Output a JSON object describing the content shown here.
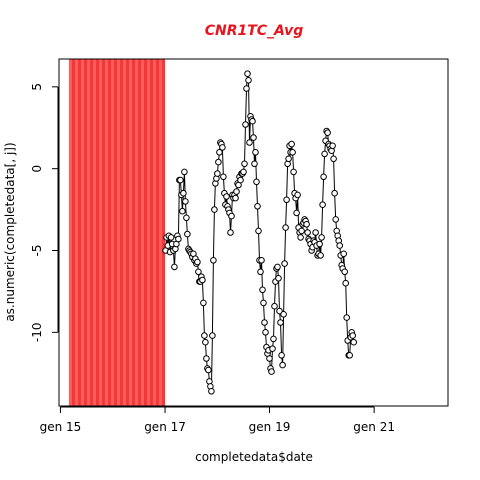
{
  "chart_data": {
    "type": "line",
    "title": "CNR1TC_Avg",
    "xlabel": "completedata$date",
    "ylabel": "as.numeric(completedata[, j])",
    "x_ticks": [
      "gen 15",
      "gen 17",
      "gen 19",
      "gen 21"
    ],
    "y_ticks": [
      "5",
      "0",
      "-5",
      "-10"
    ],
    "x_range": [
      "2014-12-22",
      "2022-06-01"
    ],
    "ylim": [
      -14.5,
      6.7
    ],
    "highlight_region": {
      "x_start": "2015-03-01",
      "x_end": "2017-01-01"
    },
    "series": [
      {
        "values": [
          {
            "x": "2017-01-05",
            "y": -5.0
          },
          {
            "x": "2017-01-12",
            "y": -4.2
          },
          {
            "x": "2017-01-20",
            "y": -4.7
          },
          {
            "x": "2017-01-28",
            "y": -4.1
          },
          {
            "x": "2017-02-05",
            "y": -5.1
          },
          {
            "x": "2017-02-12",
            "y": -4.2
          },
          {
            "x": "2017-02-20",
            "y": -4.6
          },
          {
            "x": "2017-02-28",
            "y": -5.0
          },
          {
            "x": "2017-03-07",
            "y": -6.0
          },
          {
            "x": "2017-03-14",
            "y": -4.9
          },
          {
            "x": "2017-03-21",
            "y": -4.6
          },
          {
            "x": "2017-03-28",
            "y": -4.1
          },
          {
            "x": "2017-04-04",
            "y": -4.3
          },
          {
            "x": "2017-04-11",
            "y": -0.7
          },
          {
            "x": "2017-04-18",
            "y": -0.7
          },
          {
            "x": "2017-04-25",
            "y": -1.6
          },
          {
            "x": "2017-05-02",
            "y": -2.6
          },
          {
            "x": "2017-05-09",
            "y": -1.5
          },
          {
            "x": "2017-05-16",
            "y": -0.2
          },
          {
            "x": "2017-05-23",
            "y": -2.0
          },
          {
            "x": "2017-05-30",
            "y": -3.0
          },
          {
            "x": "2017-06-06",
            "y": -4.0
          },
          {
            "x": "2017-06-13",
            "y": -4.9
          },
          {
            "x": "2017-06-20",
            "y": -5.0
          },
          {
            "x": "2017-06-27",
            "y": -5.1
          },
          {
            "x": "2017-07-04",
            "y": -5.2
          },
          {
            "x": "2017-07-11",
            "y": -5.4
          },
          {
            "x": "2017-07-18",
            "y": -5.2
          },
          {
            "x": "2017-07-25",
            "y": -5.6
          },
          {
            "x": "2017-08-01",
            "y": -5.5
          },
          {
            "x": "2017-08-08",
            "y": -5.8
          },
          {
            "x": "2017-08-15",
            "y": -5.7
          },
          {
            "x": "2017-08-22",
            "y": -6.3
          },
          {
            "x": "2017-08-29",
            "y": -6.9
          },
          {
            "x": "2017-09-05",
            "y": -6.9
          },
          {
            "x": "2017-09-12",
            "y": -6.6
          },
          {
            "x": "2017-09-19",
            "y": -6.8
          },
          {
            "x": "2017-09-26",
            "y": -8.2
          },
          {
            "x": "2017-10-03",
            "y": -10.2
          },
          {
            "x": "2017-10-10",
            "y": -10.6
          },
          {
            "x": "2017-10-17",
            "y": -11.6
          },
          {
            "x": "2017-10-24",
            "y": -12.2
          },
          {
            "x": "2017-10-31",
            "y": -12.3
          },
          {
            "x": "2017-11-07",
            "y": -13.0
          },
          {
            "x": "2017-11-14",
            "y": -13.3
          },
          {
            "x": "2017-11-21",
            "y": -13.6
          },
          {
            "x": "2017-11-28",
            "y": -10.2
          },
          {
            "x": "2017-12-05",
            "y": -5.6
          },
          {
            "x": "2017-12-12",
            "y": -2.5
          },
          {
            "x": "2017-12-19",
            "y": -0.9
          },
          {
            "x": "2017-12-26",
            "y": -0.6
          },
          {
            "x": "2018-01-02",
            "y": -0.3
          },
          {
            "x": "2018-01-09",
            "y": 0.4
          },
          {
            "x": "2018-01-16",
            "y": 1.0
          },
          {
            "x": "2018-01-23",
            "y": 1.6
          },
          {
            "x": "2018-01-30",
            "y": 1.5
          },
          {
            "x": "2018-02-06",
            "y": 1.3
          },
          {
            "x": "2018-02-13",
            "y": -0.5
          },
          {
            "x": "2018-02-20",
            "y": -1.5
          },
          {
            "x": "2018-02-27",
            "y": -2.2
          },
          {
            "x": "2018-03-06",
            "y": -1.7
          },
          {
            "x": "2018-03-13",
            "y": -2.3
          },
          {
            "x": "2018-03-20",
            "y": -2.5
          },
          {
            "x": "2018-03-27",
            "y": -2.7
          },
          {
            "x": "2018-04-03",
            "y": -3.9
          },
          {
            "x": "2018-04-10",
            "y": -2.9
          },
          {
            "x": "2018-04-17",
            "y": -1.6
          },
          {
            "x": "2018-04-24",
            "y": -1.8
          },
          {
            "x": "2018-05-01",
            "y": -1.6
          },
          {
            "x": "2018-05-08",
            "y": -1.8
          },
          {
            "x": "2018-05-15",
            "y": -1.4
          },
          {
            "x": "2018-05-22",
            "y": -0.9
          },
          {
            "x": "2018-05-29",
            "y": -1.0
          },
          {
            "x": "2018-06-05",
            "y": -0.5
          },
          {
            "x": "2018-06-12",
            "y": -0.7
          },
          {
            "x": "2018-06-19",
            "y": -0.3
          },
          {
            "x": "2018-06-26",
            "y": -0.3
          },
          {
            "x": "2018-07-03",
            "y": -0.2
          },
          {
            "x": "2018-07-10",
            "y": 0.3
          },
          {
            "x": "2018-07-17",
            "y": 2.7
          },
          {
            "x": "2018-07-24",
            "y": 4.9
          },
          {
            "x": "2018-07-31",
            "y": 5.8
          },
          {
            "x": "2018-08-07",
            "y": 5.4
          },
          {
            "x": "2018-08-14",
            "y": 1.6
          },
          {
            "x": "2018-08-21",
            "y": 3.2
          },
          {
            "x": "2018-08-28",
            "y": 3.0
          },
          {
            "x": "2018-09-04",
            "y": 2.9
          },
          {
            "x": "2018-09-11",
            "y": 1.9
          },
          {
            "x": "2018-09-18",
            "y": 0.3
          },
          {
            "x": "2018-09-25",
            "y": 1.0
          },
          {
            "x": "2018-10-02",
            "y": -0.8
          },
          {
            "x": "2018-10-09",
            "y": -2.3
          },
          {
            "x": "2018-10-16",
            "y": -3.8
          },
          {
            "x": "2018-10-23",
            "y": -5.6
          },
          {
            "x": "2018-10-30",
            "y": -6.3
          },
          {
            "x": "2018-11-06",
            "y": -5.6
          },
          {
            "x": "2018-11-13",
            "y": -7.4
          },
          {
            "x": "2018-11-20",
            "y": -8.2
          },
          {
            "x": "2018-11-27",
            "y": -9.4
          },
          {
            "x": "2018-12-04",
            "y": -10.0
          },
          {
            "x": "2018-12-11",
            "y": -10.9
          },
          {
            "x": "2018-12-18",
            "y": -11.3
          },
          {
            "x": "2018-12-25",
            "y": -11.1
          },
          {
            "x": "2019-01-01",
            "y": -11.6
          },
          {
            "x": "2019-01-08",
            "y": -12.2
          },
          {
            "x": "2019-01-15",
            "y": -12.4
          },
          {
            "x": "2019-01-22",
            "y": -11.0
          },
          {
            "x": "2019-01-29",
            "y": -10.4
          },
          {
            "x": "2019-02-05",
            "y": -8.4
          },
          {
            "x": "2019-02-12",
            "y": -6.9
          },
          {
            "x": "2019-02-19",
            "y": -6.1
          },
          {
            "x": "2019-02-26",
            "y": -6.0
          },
          {
            "x": "2019-03-05",
            "y": -6.7
          },
          {
            "x": "2019-03-12",
            "y": -8.7
          },
          {
            "x": "2019-03-19",
            "y": -9.4
          },
          {
            "x": "2019-03-26",
            "y": -11.4
          },
          {
            "x": "2019-04-02",
            "y": -12.0
          },
          {
            "x": "2019-04-09",
            "y": -8.9
          },
          {
            "x": "2019-04-16",
            "y": -5.8
          },
          {
            "x": "2019-04-23",
            "y": -3.6
          },
          {
            "x": "2019-04-30",
            "y": -1.9
          },
          {
            "x": "2019-05-07",
            "y": 0.3
          },
          {
            "x": "2019-05-14",
            "y": 0.6
          },
          {
            "x": "2019-05-21",
            "y": 1.4
          },
          {
            "x": "2019-05-28",
            "y": 1.0
          },
          {
            "x": "2019-06-04",
            "y": 1.5
          },
          {
            "x": "2019-06-11",
            "y": 1.0
          },
          {
            "x": "2019-06-18",
            "y": -0.2
          },
          {
            "x": "2019-06-25",
            "y": -1.5
          },
          {
            "x": "2019-07-02",
            "y": -1.8
          },
          {
            "x": "2019-07-09",
            "y": -2.7
          },
          {
            "x": "2019-07-16",
            "y": -1.6
          },
          {
            "x": "2019-07-23",
            "y": -3.6
          },
          {
            "x": "2019-07-30",
            "y": -3.9
          },
          {
            "x": "2019-08-06",
            "y": -4.2
          },
          {
            "x": "2019-08-13",
            "y": -3.8
          },
          {
            "x": "2019-08-20",
            "y": -3.4
          },
          {
            "x": "2019-08-27",
            "y": -3.3
          },
          {
            "x": "2019-09-03",
            "y": -3.1
          },
          {
            "x": "2019-09-10",
            "y": -3.2
          },
          {
            "x": "2019-09-17",
            "y": -3.4
          },
          {
            "x": "2019-09-24",
            "y": -3.9
          },
          {
            "x": "2019-10-01",
            "y": -4.3
          },
          {
            "x": "2019-10-08",
            "y": -4.4
          },
          {
            "x": "2019-10-15",
            "y": -4.6
          },
          {
            "x": "2019-10-22",
            "y": -5.0
          },
          {
            "x": "2019-10-29",
            "y": -4.8
          },
          {
            "x": "2019-11-05",
            "y": -4.4
          },
          {
            "x": "2019-11-12",
            "y": -4.5
          },
          {
            "x": "2019-11-19",
            "y": -3.9
          },
          {
            "x": "2019-11-26",
            "y": -4.7
          },
          {
            "x": "2019-12-03",
            "y": -5.3
          },
          {
            "x": "2019-12-10",
            "y": -5.2
          },
          {
            "x": "2019-12-17",
            "y": -4.6
          },
          {
            "x": "2019-12-24",
            "y": -5.3
          },
          {
            "x": "2019-12-31",
            "y": -4.2
          },
          {
            "x": "2020-01-07",
            "y": -2.2
          },
          {
            "x": "2020-01-14",
            "y": -0.5
          },
          {
            "x": "2020-01-21",
            "y": 0.9
          },
          {
            "x": "2020-01-28",
            "y": 1.7
          },
          {
            "x": "2020-02-04",
            "y": 2.3
          },
          {
            "x": "2020-02-11",
            "y": 2.2
          },
          {
            "x": "2020-02-18",
            "y": 1.5
          },
          {
            "x": "2020-02-25",
            "y": 1.4
          },
          {
            "x": "2020-03-03",
            "y": 1.2
          },
          {
            "x": "2020-03-10",
            "y": 1.1
          },
          {
            "x": "2020-03-17",
            "y": 1.4
          },
          {
            "x": "2020-03-24",
            "y": 0.6
          },
          {
            "x": "2020-03-31",
            "y": -1.5
          },
          {
            "x": "2020-04-07",
            "y": -3.1
          },
          {
            "x": "2020-04-14",
            "y": -3.8
          },
          {
            "x": "2020-04-21",
            "y": -4.1
          },
          {
            "x": "2020-04-28",
            "y": -4.4
          },
          {
            "x": "2020-05-05",
            "y": -4.7
          },
          {
            "x": "2020-05-12",
            "y": -5.3
          },
          {
            "x": "2020-05-19",
            "y": -5.9
          },
          {
            "x": "2020-05-26",
            "y": -6.1
          },
          {
            "x": "2020-06-02",
            "y": -5.2
          },
          {
            "x": "2020-06-09",
            "y": -6.3
          },
          {
            "x": "2020-06-16",
            "y": -7.0
          },
          {
            "x": "2020-06-23",
            "y": -9.1
          },
          {
            "x": "2020-06-30",
            "y": -10.5
          },
          {
            "x": "2020-07-07",
            "y": -11.4
          },
          {
            "x": "2020-07-14",
            "y": -11.4
          },
          {
            "x": "2020-07-21",
            "y": -10.3
          },
          {
            "x": "2020-07-28",
            "y": -10.0
          },
          {
            "x": "2020-08-04",
            "y": -10.2
          },
          {
            "x": "2020-08-11",
            "y": -10.6
          }
        ]
      }
    ]
  }
}
